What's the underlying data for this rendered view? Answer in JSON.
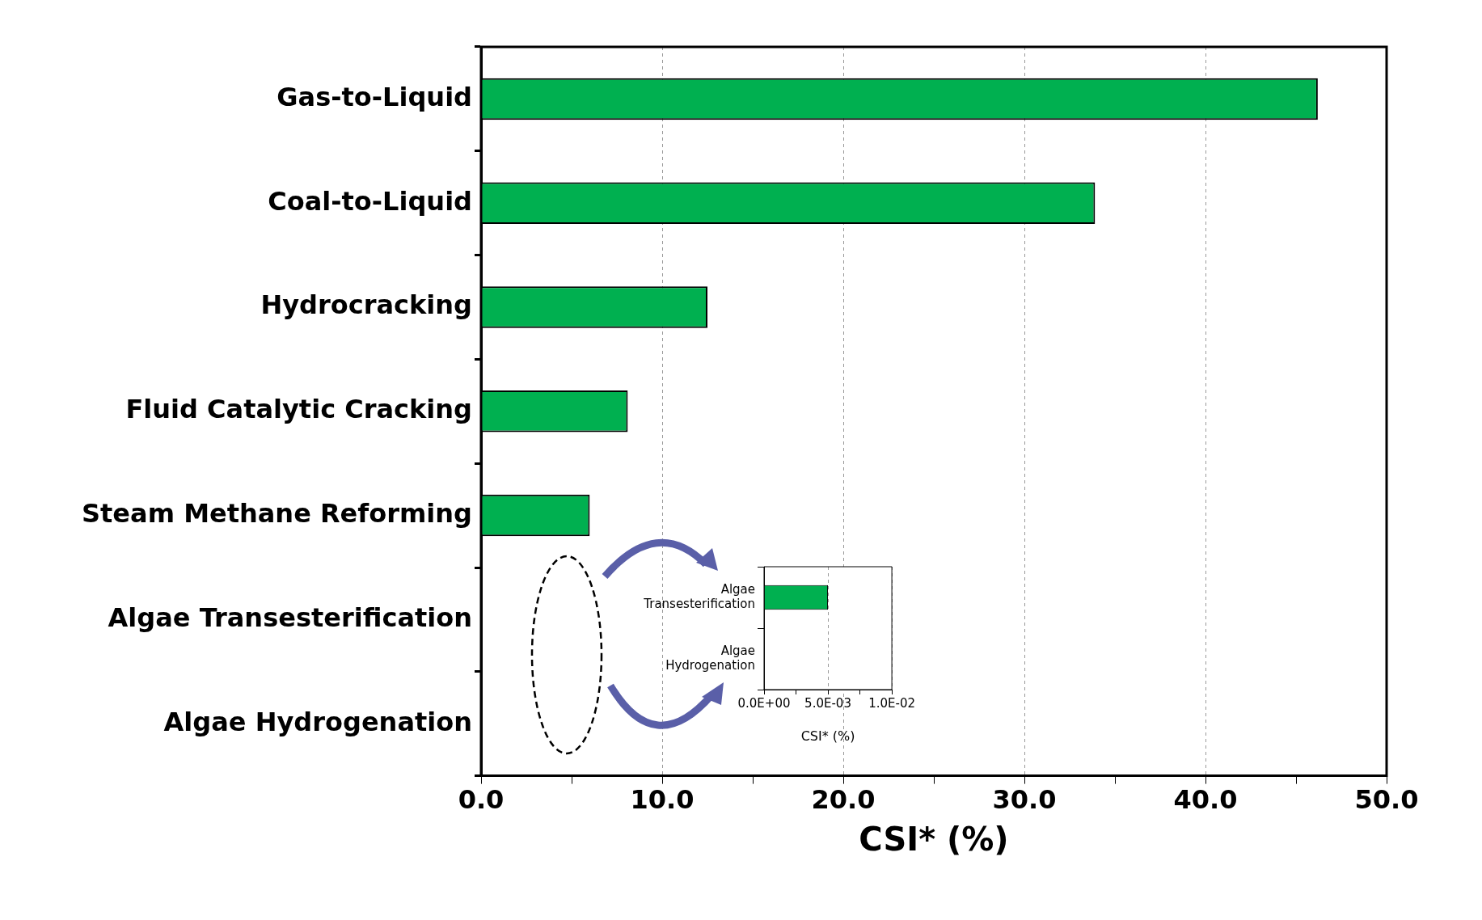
{
  "chart_data": [
    {
      "type": "bar",
      "orientation": "horizontal",
      "categories": [
        "Gas-to-Liquid",
        "Coal-to-Liquid",
        "Hydrocracking",
        "Fluid Catalytic Cracking",
        "Steam Methane Reforming",
        "Algae Transesterification",
        "Algae Hydrogenation"
      ],
      "values": [
        46.2,
        33.9,
        12.5,
        8.1,
        6.0,
        0.005,
        0
      ],
      "color": "#00b050",
      "xlabel": "CSI* (%)",
      "xlim": [
        0,
        50
      ],
      "xticks": [
        {
          "value": 0,
          "label": "0.0"
        },
        {
          "value": 5,
          "label": null
        },
        {
          "value": 10,
          "label": "10.0"
        },
        {
          "value": 15,
          "label": null
        },
        {
          "value": 20,
          "label": "20.0"
        },
        {
          "value": 25,
          "label": null
        },
        {
          "value": 30,
          "label": "30.0"
        },
        {
          "value": 35,
          "label": null
        },
        {
          "value": 40,
          "label": "40.0"
        },
        {
          "value": 45,
          "label": null
        },
        {
          "value": 50,
          "label": "50.0"
        }
      ],
      "grid": "x",
      "legend": false
    },
    {
      "type": "bar",
      "orientation": "horizontal",
      "categories": [
        "Algae Transesterification",
        "Algae Hydrogenation"
      ],
      "values": [
        0.005,
        0
      ],
      "color": "#00b050",
      "xlabel": "CSI* (%)",
      "xlim": [
        0,
        0.01
      ],
      "xticks": [
        {
          "value": 0,
          "label": "0.0E+00"
        },
        {
          "value": 0.0025,
          "label": null
        },
        {
          "value": 0.005,
          "label": "5.0E-03"
        },
        {
          "value": 0.0075,
          "label": null
        },
        {
          "value": 0.01,
          "label": "1.0E-02"
        }
      ],
      "grid": "x",
      "legend": false
    }
  ]
}
